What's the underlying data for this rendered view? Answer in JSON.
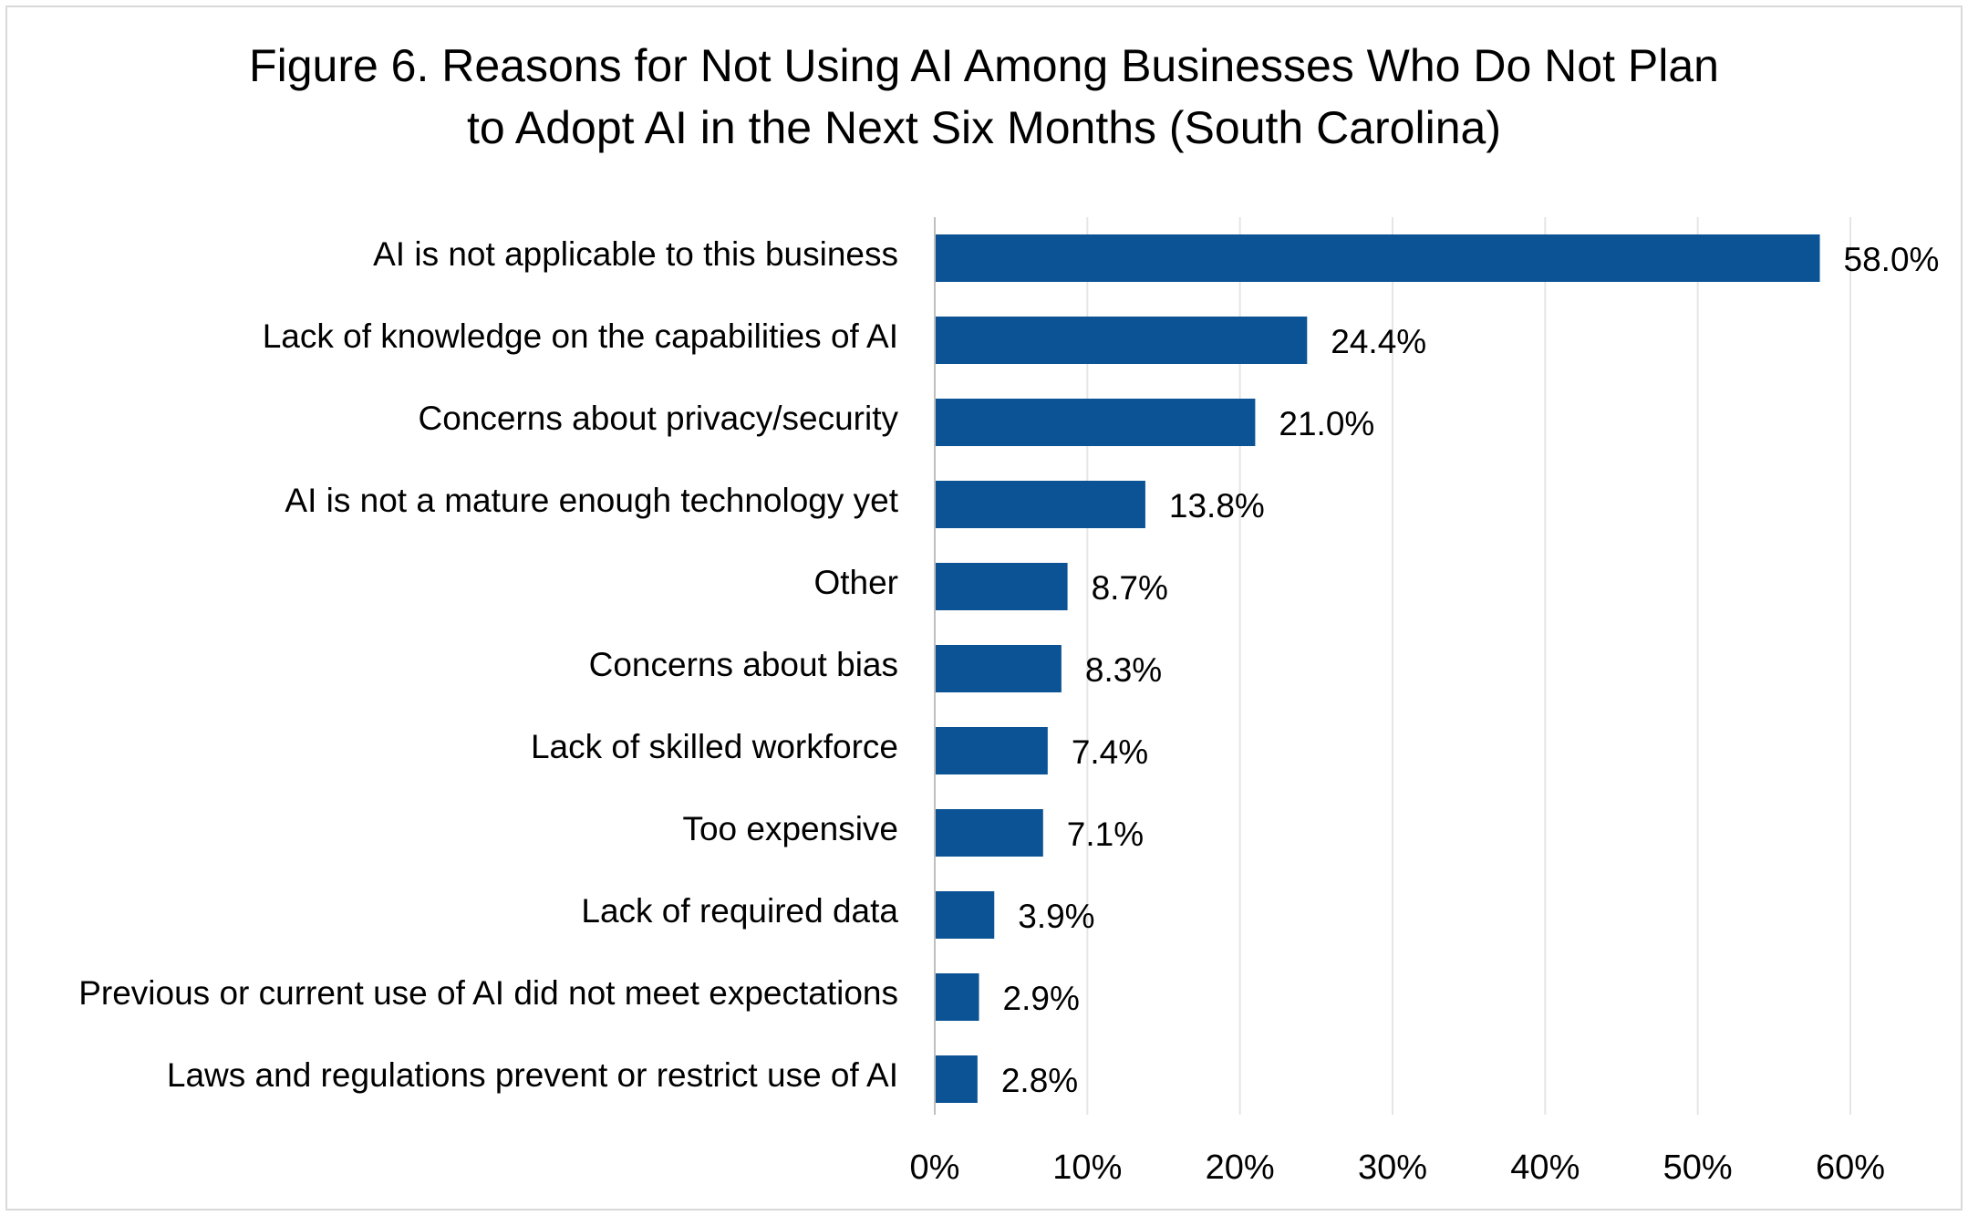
{
  "chart_data": {
    "type": "bar",
    "orientation": "horizontal",
    "title": "Figure 6. Reasons for Not Using AI Among Businesses Who Do Not Plan to Adopt AI in the Next Six Months (South Carolina)",
    "title_lines": [
      "Figure 6. Reasons for Not Using AI Among Businesses Who Do Not Plan",
      "to Adopt AI in the Next Six Months (South Carolina)"
    ],
    "categories": [
      "AI is not applicable to this business",
      "Lack of knowledge on the capabilities of AI",
      "Concerns about privacy/security",
      "AI is not a mature enough technology yet",
      "Other",
      "Concerns about bias",
      "Lack of skilled workforce",
      "Too expensive",
      "Lack of required data",
      "Previous or current use of AI did not meet expectations",
      "Laws and regulations prevent or restrict use of AI"
    ],
    "values": [
      58.0,
      24.4,
      21.0,
      13.8,
      8.7,
      8.3,
      7.4,
      7.1,
      3.9,
      2.9,
      2.8
    ],
    "data_labels": [
      "58.0%",
      "24.4%",
      "21.0%",
      "13.8%",
      "8.7%",
      "8.3%",
      "7.4%",
      "7.1%",
      "3.9%",
      "2.9%",
      "2.8%"
    ],
    "xlim": [
      0,
      60
    ],
    "x_ticks": [
      0,
      10,
      20,
      30,
      40,
      50,
      60
    ],
    "x_tick_labels": [
      "0%",
      "10%",
      "20%",
      "30%",
      "40%",
      "50%",
      "60%"
    ],
    "xlabel": "",
    "ylabel": "",
    "grid": "vertical",
    "legend": "none",
    "colors": {
      "bar": "#0b5394",
      "grid": "#e6e6e6",
      "axis": "#bfbfbf",
      "frame": "#d9d9d9"
    }
  }
}
